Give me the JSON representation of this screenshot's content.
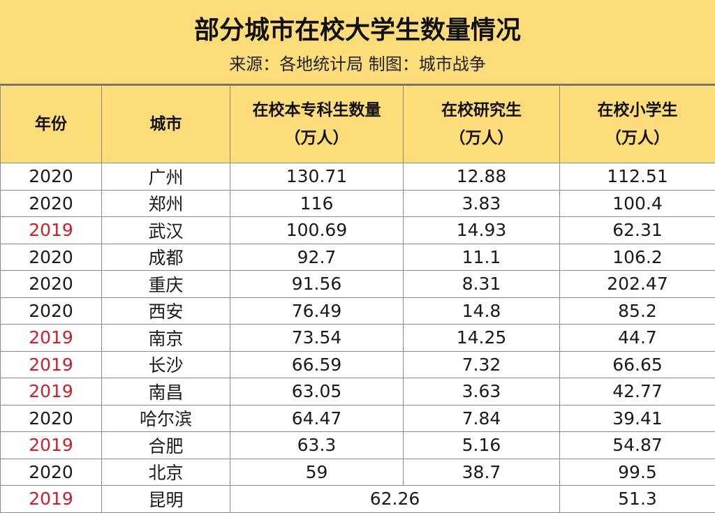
{
  "title": "部分城市在校大学生数量情况",
  "subtitle": "来源：各地统计局  制图：城市战争",
  "colors": {
    "header_bg": "#fddd7a",
    "year_2019": "#d01f2a",
    "text": "#1a1a1a"
  },
  "columns": {
    "year": "年份",
    "city": "城市",
    "undergrad_line1": "在校本专科生数量",
    "undergrad_line2": "（万人）",
    "grad_line1": "在校研究生",
    "grad_line2": "（万人）",
    "primary_line1": "在校小学生",
    "primary_line2": "（万人）"
  },
  "rows": [
    {
      "year": "2020",
      "city": "广州",
      "undergrad": "130.71",
      "grad": "12.88",
      "primary": "112.51"
    },
    {
      "year": "2020",
      "city": "郑州",
      "undergrad": "116",
      "grad": "3.83",
      "primary": "100.4"
    },
    {
      "year": "2019",
      "city": "武汉",
      "undergrad": "100.69",
      "grad": "14.93",
      "primary": "62.31"
    },
    {
      "year": "2020",
      "city": "成都",
      "undergrad": "92.7",
      "grad": "11.1",
      "primary": "106.2"
    },
    {
      "year": "2020",
      "city": "重庆",
      "undergrad": "91.56",
      "grad": "8.31",
      "primary": "202.47"
    },
    {
      "year": "2020",
      "city": "西安",
      "undergrad": "76.49",
      "grad": "14.8",
      "primary": "85.2"
    },
    {
      "year": "2019",
      "city": "南京",
      "undergrad": "73.54",
      "grad": "14.25",
      "primary": "44.7"
    },
    {
      "year": "2019",
      "city": "长沙",
      "undergrad": "66.59",
      "grad": "7.32",
      "primary": "66.65"
    },
    {
      "year": "2019",
      "city": "南昌",
      "undergrad": "63.05",
      "grad": "3.63",
      "primary": "42.77"
    },
    {
      "year": "2020",
      "city": "哈尔滨",
      "undergrad": "64.47",
      "grad": "7.84",
      "primary": "39.41"
    },
    {
      "year": "2019",
      "city": "合肥",
      "undergrad": "63.3",
      "grad": "5.16",
      "primary": "54.87"
    },
    {
      "year": "2020",
      "city": "北京",
      "undergrad": "59",
      "grad": "38.7",
      "primary": "99.5"
    }
  ],
  "last_row": {
    "year": "2019",
    "city": "昆明",
    "merged_value": "62.26",
    "primary": "51.3"
  }
}
